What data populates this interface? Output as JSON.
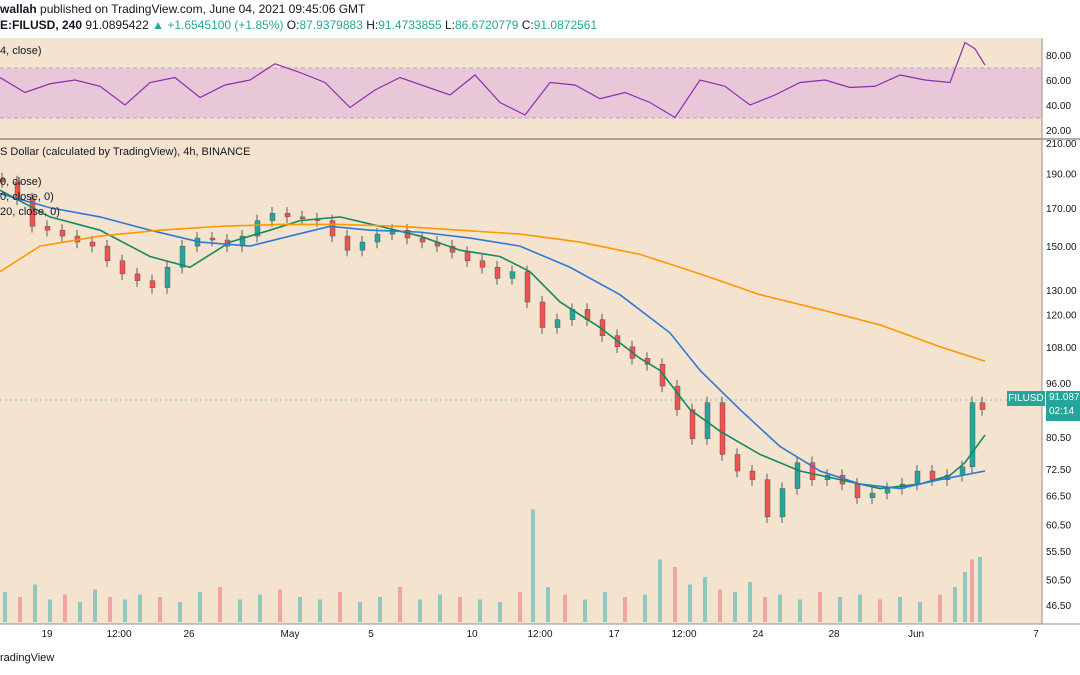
{
  "header": {
    "author": "wallah",
    "published_text": "published on TradingView.com, June 04, 2021 09:45:06 GMT",
    "symbol": "E:FILUSD, 240",
    "price": "91.0895422",
    "change": "+1.6545100 (+1.85%)",
    "open_label": "O:",
    "open": "87.9379883",
    "high_label": "H:",
    "high": "91.4733855",
    "low_label": "L:",
    "low": "86.6720779",
    "close_label": "C:",
    "close": "91.0872561"
  },
  "rsi_panel": {
    "label": "4, close)",
    "ticks": [
      "80.00",
      "60.00",
      "40.00",
      "20.00"
    ]
  },
  "price_panel": {
    "title": "S Dollar (calculated by TradingView), 4h, BINANCE",
    "legend": [
      "0, close)",
      "0, close, 0)",
      "20, close, 0)"
    ],
    "ticks": [
      "210.00",
      "190.00",
      "170.00",
      "150.00",
      "130.00",
      "120.00",
      "108.00",
      "96.00",
      "80.50",
      "72.50",
      "66.50",
      "60.50",
      "55.50",
      "50.50",
      "46.50"
    ],
    "symbol_badge": "FILUSD",
    "last_price": "91.087",
    "countdown": "02:14"
  },
  "time_axis": [
    "19",
    "12:00",
    "26",
    "May",
    "5",
    "10",
    "12:00",
    "17",
    "12:00",
    "24",
    "28",
    "Jun",
    "7"
  ],
  "footer": "radingView",
  "colors": {
    "background": "#f4e3cf",
    "up": "#26a69a",
    "down": "#ef5350",
    "ma_fast": "#128a63",
    "ma_mid": "#2d7ad6",
    "ma_slow": "#ff9800",
    "rsi_line": "#8e2bb0",
    "rsi_band": "#e8c8d8"
  },
  "chart_data": [
    {
      "type": "line",
      "name": "RSI",
      "x": [
        0,
        25,
        50,
        75,
        100,
        125,
        150,
        175,
        200,
        225,
        250,
        275,
        300,
        325,
        350,
        375,
        400,
        425,
        450,
        475,
        500,
        525,
        550,
        575,
        600,
        625,
        650,
        675,
        700,
        725,
        750,
        775,
        800,
        825,
        850,
        875,
        900,
        925,
        950,
        965,
        975,
        985
      ],
      "y": [
        62,
        50,
        57,
        60,
        55,
        40,
        58,
        62,
        46,
        56,
        60,
        73,
        66,
        58,
        38,
        52,
        62,
        55,
        48,
        64,
        42,
        32,
        58,
        56,
        45,
        50,
        42,
        30,
        60,
        55,
        40,
        48,
        58,
        60,
        54,
        55,
        64,
        60,
        58,
        90,
        85,
        72
      ],
      "ylim": [
        0,
        100
      ]
    },
    {
      "type": "candlestick",
      "name": "FILUSD 4h",
      "x": [
        0,
        15,
        30,
        45,
        60,
        75,
        90,
        105,
        120,
        135,
        150,
        165,
        180,
        195,
        210,
        225,
        240,
        255,
        270,
        285,
        300,
        315,
        330,
        345,
        360,
        375,
        390,
        405,
        420,
        435,
        450,
        465,
        480,
        495,
        510,
        525,
        540,
        555,
        570,
        585,
        600,
        615,
        630,
        645,
        660,
        675,
        690,
        705,
        720,
        735,
        750,
        765,
        780,
        795,
        810,
        825,
        840,
        855,
        870,
        885,
        900,
        915,
        930,
        945,
        960,
        970,
        980
      ],
      "values": [
        185,
        175,
        160,
        158,
        155,
        152,
        150,
        143,
        137,
        134,
        131,
        140,
        150,
        154,
        153,
        150,
        155,
        163,
        167,
        165,
        164,
        163,
        155,
        148,
        152,
        156,
        158,
        154,
        152,
        150,
        147,
        143,
        140,
        135,
        138,
        125,
        115,
        118,
        122,
        118,
        112,
        108,
        104,
        102,
        95,
        88,
        80,
        90,
        76,
        72,
        70,
        62,
        68,
        74,
        70,
        71,
        69,
        66,
        67,
        68,
        69,
        72,
        70,
        71,
        73,
        90,
        88
      ],
      "ylim": [
        40,
        215
      ]
    },
    {
      "type": "line",
      "name": "MA fast",
      "x": [
        0,
        50,
        100,
        150,
        190,
        230,
        270,
        300,
        340,
        380,
        420,
        460,
        500,
        530,
        560,
        600,
        640,
        660,
        690,
        720,
        760,
        800,
        840,
        880,
        920,
        950,
        965,
        985
      ],
      "y": [
        180,
        165,
        158,
        145,
        140,
        152,
        158,
        163,
        165,
        160,
        155,
        148,
        145,
        138,
        125,
        115,
        104,
        100,
        88,
        82,
        76,
        72,
        70,
        68,
        69,
        71,
        74,
        81
      ]
    },
    {
      "type": "line",
      "name": "MA mid",
      "x": [
        0,
        50,
        100,
        150,
        200,
        250,
        290,
        330,
        370,
        420,
        470,
        520,
        570,
        620,
        670,
        700,
        740,
        780,
        820,
        860,
        900,
        940,
        985
      ],
      "y": [
        178,
        170,
        165,
        158,
        152,
        150,
        155,
        160,
        158,
        157,
        154,
        150,
        140,
        128,
        113,
        100,
        88,
        78,
        72,
        69,
        68,
        70,
        72
      ]
    },
    {
      "type": "line",
      "name": "MA slow",
      "x": [
        0,
        40,
        100,
        160,
        220,
        280,
        340,
        400,
        460,
        520,
        580,
        640,
        700,
        760,
        820,
        880,
        940,
        985
      ],
      "y": [
        138,
        150,
        155,
        158,
        160,
        161,
        161,
        160,
        158,
        156,
        152,
        146,
        137,
        128,
        122,
        116,
        108,
        103
      ]
    },
    {
      "type": "bar",
      "name": "Volume",
      "x": [
        5,
        20,
        35,
        50,
        65,
        80,
        95,
        110,
        125,
        140,
        160,
        180,
        200,
        220,
        240,
        260,
        280,
        300,
        320,
        340,
        360,
        380,
        400,
        420,
        440,
        460,
        480,
        500,
        520,
        533,
        548,
        565,
        585,
        605,
        625,
        645,
        660,
        675,
        690,
        705,
        720,
        735,
        750,
        765,
        780,
        800,
        820,
        840,
        860,
        880,
        900,
        920,
        940,
        955,
        965,
        972,
        980
      ],
      "values": [
        12,
        10,
        15,
        9,
        11,
        8,
        13,
        10,
        9,
        11,
        10,
        8,
        12,
        14,
        9,
        11,
        13,
        10,
        9,
        12,
        8,
        10,
        14,
        9,
        11,
        10,
        9,
        8,
        12,
        45,
        14,
        11,
        9,
        12,
        10,
        11,
        25,
        22,
        15,
        18,
        13,
        12,
        16,
        10,
        11,
        9,
        12,
        10,
        11,
        9,
        10,
        8,
        11,
        14,
        20,
        25,
        26
      ]
    }
  ]
}
